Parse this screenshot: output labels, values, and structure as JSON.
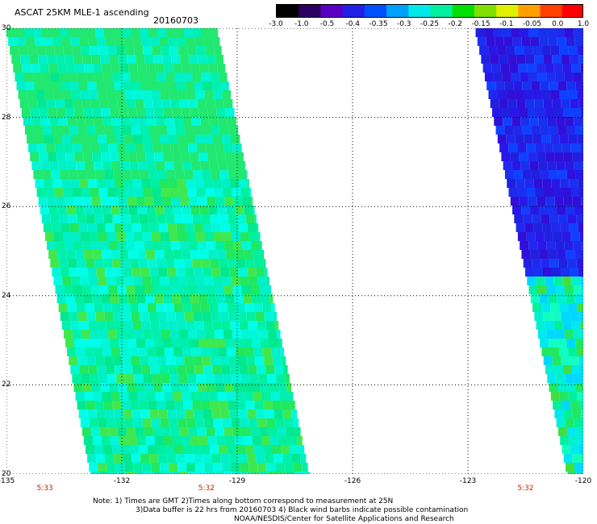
{
  "title": "ASCAT 25KM MLE-1 ascending",
  "date": "20160703",
  "colorbar": {
    "labels": [
      "-3.0",
      "-1.0",
      "-0.5",
      "-0.4",
      "-0.35",
      "-0.3",
      "-0.25",
      "-0.2",
      "-0.15",
      "-0.1",
      "-0.05",
      "0.0",
      "1.0"
    ],
    "colors": [
      "#000000",
      "#2a0060",
      "#5a00c0",
      "#2020e8",
      "#0050ff",
      "#00a0ff",
      "#00e8e8",
      "#00f0a0",
      "#00e000",
      "#80e000",
      "#e0f000",
      "#ffa000",
      "#ff4000",
      "#ff0000"
    ]
  },
  "axes": {
    "lat_ticks": [
      20,
      22,
      24,
      26,
      28,
      30
    ],
    "lon_ticks": [
      -135,
      -132,
      -129,
      -126,
      -123,
      -120
    ],
    "lat_labels": [
      "20",
      "22",
      "24",
      "26",
      "28",
      "30"
    ],
    "lon_labels": [
      "-135",
      "-132",
      "-129",
      "-126",
      "-123",
      "-120"
    ]
  },
  "pass_times": [
    {
      "lon": -134,
      "label": "5:33"
    },
    {
      "lon": -129.8,
      "label": "5:32"
    },
    {
      "lon": -121.5,
      "label": "5:32"
    }
  ],
  "notes": {
    "line1": "Note: 1) Times are GMT 2)Times along bottom correspond to measurement at 25N",
    "line2": "3)Data buffer is 22 hrs from 20160703 4) Black wind barbs indicate possible contamination",
    "line3": "NOAA/NESDIS/Center for Satellite Applications and Research"
  },
  "swaths": {
    "left": {
      "top_edge": [
        -135,
        -129.5
      ],
      "bottom_edge": [
        -132.8,
        -127.1
      ],
      "dominant": "green-cyan"
    },
    "right": {
      "top_edge": [
        -122.8,
        -120
      ],
      "bottom_edge": [
        -120.4,
        -120
      ],
      "dominant": "blue-to-cyan"
    }
  }
}
